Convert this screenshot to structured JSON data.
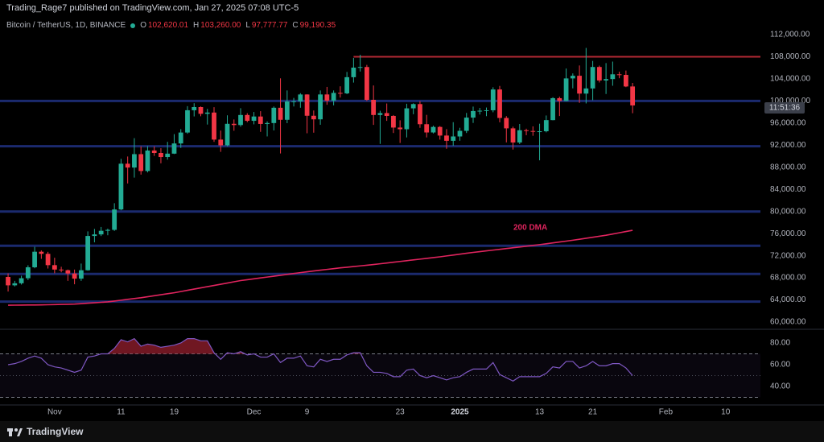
{
  "header": {
    "publisher": "Trading_Rage7 published on TradingView.com, Jan 27, 2025 07:08 UTC-5",
    "symbol": "Bitcoin / TetherUS, 1D, BINANCE",
    "ohlc_legend": [
      {
        "key": "O",
        "value": "102,620.01"
      },
      {
        "key": "H",
        "value": "103,260.00"
      },
      {
        "key": "L",
        "value": "97,777.77"
      },
      {
        "key": "C",
        "value": "99,190.35"
      }
    ]
  },
  "footer": {
    "brand": "TradingView"
  },
  "chart_data": [
    {
      "type": "candlestick",
      "up_color": "#22ab94",
      "down_color": "#f23645",
      "open": [
        68161,
        66642,
        67014,
        67929,
        69907,
        72720,
        72340,
        70292,
        69496,
        69374,
        68775,
        67850,
        69372,
        75571,
        75857,
        76509,
        76677,
        80370,
        88647,
        87952,
        90375,
        87325,
        91032,
        90587,
        89855,
        90465,
        92310,
        94287,
        98318,
        98892,
        97673,
        97900,
        93010,
        91965,
        95863,
        95643,
        97461,
        96407,
        97185,
        95840,
        96002,
        98768,
        96593,
        99920,
        99923,
        101170,
        97323,
        96675,
        101174,
        100043,
        101459,
        101372,
        104298,
        106030,
        106140,
        100200,
        97461,
        97805,
        97292,
        95187,
        94881,
        98663,
        99430,
        95792,
        94300,
        95300,
        93740,
        92792,
        93576,
        94591,
        96985,
        98174,
        98236,
        98314,
        102078,
        96923,
        95044,
        92484,
        94701,
        94566,
        94488,
        94516,
        96534,
        100504,
        99988,
        104077,
        104557,
        101330,
        102260,
        106143,
        103706,
        103960,
        104820,
        104714,
        102620.01
      ],
      "high": [
        68800,
        67450,
        68380,
        70270,
        73620,
        72960,
        72700,
        71632,
        70000,
        69500,
        69490,
        70580,
        76400,
        76850,
        77200,
        76900,
        81500,
        89530,
        89950,
        93265,
        91790,
        91850,
        91780,
        91450,
        92600,
        94000,
        94900,
        99060,
        99590,
        99000,
        98565,
        98870,
        94640,
        97400,
        96650,
        98690,
        97780,
        98000,
        98150,
        96300,
        99000,
        104090,
        101900,
        100550,
        101400,
        101200,
        98270,
        101900,
        102540,
        101900,
        102650,
        105250,
        107780,
        108350,
        106520,
        102800,
        98230,
        99540,
        97450,
        96500,
        99490,
        99570,
        99960,
        97480,
        95530,
        95450,
        94900,
        96160,
        95150,
        97830,
        98980,
        98740,
        98810,
        102480,
        102720,
        97260,
        95350,
        95830,
        94980,
        95400,
        95880,
        97370,
        100680,
        100780,
        105865,
        104980,
        106420,
        109590,
        107240,
        106390,
        106850,
        107120,
        105290,
        105500,
        103260
      ],
      "low": [
        65520,
        66440,
        66780,
        67600,
        69730,
        71430,
        69680,
        68820,
        69000,
        67450,
        66835,
        67450,
        69300,
        74420,
        75560,
        75700,
        76490,
        80220,
        85070,
        86130,
        86670,
        87070,
        90060,
        88720,
        89380,
        90400,
        91500,
        94070,
        97200,
        97230,
        95730,
        92600,
        90790,
        91810,
        94610,
        95340,
        96160,
        95770,
        94410,
        93580,
        94660,
        90500,
        95980,
        99000,
        98770,
        94150,
        94260,
        95690,
        99310,
        99200,
        100610,
        101230,
        103320,
        105320,
        100000,
        95670,
        92230,
        96400,
        94200,
        92400,
        93400,
        97600,
        95140,
        93400,
        94120,
        93000,
        91350,
        91900,
        92800,
        94200,
        96020,
        97540,
        97250,
        97950,
        96130,
        92500,
        91200,
        92200,
        93800,
        93700,
        89260,
        94320,
        96500,
        97270,
        99950,
        102280,
        99650,
        99550,
        100120,
        103340,
        101260,
        102750,
        104110,
        102500,
        97777.77
      ],
      "close": [
        66642,
        67014,
        67929,
        69907,
        72720,
        72340,
        70292,
        69496,
        69374,
        68775,
        67850,
        69372,
        75571,
        75857,
        76509,
        76677,
        80370,
        88647,
        87952,
        90375,
        87325,
        91032,
        90587,
        89855,
        90465,
        92310,
        94287,
        98318,
        98892,
        97673,
        97900,
        93010,
        91965,
        95863,
        95643,
        97461,
        96407,
        97185,
        95840,
        96002,
        98768,
        96593,
        99920,
        99923,
        101170,
        97323,
        96675,
        101174,
        100043,
        101459,
        101372,
        104298,
        106030,
        106140,
        100200,
        97461,
        97805,
        97292,
        95187,
        94881,
        98663,
        99430,
        95792,
        94300,
        95300,
        93740,
        92792,
        93576,
        94591,
        96985,
        98174,
        98236,
        98314,
        102078,
        96923,
        95044,
        92484,
        94701,
        94566,
        94488,
        94516,
        96534,
        100504,
        99988,
        104077,
        104557,
        101330,
        102260,
        106143,
        103706,
        103960,
        104820,
        104714,
        102620.01,
        99190.35
      ],
      "series": [
        {
          "name": "200 DMA",
          "color": "#e0245e",
          "values": [
            63050,
            63060,
            63070,
            63080,
            63090,
            63100,
            63130,
            63160,
            63190,
            63220,
            63250,
            63330,
            63410,
            63490,
            63570,
            63650,
            63800,
            63950,
            64100,
            64250,
            64400,
            64580,
            64760,
            64940,
            65120,
            65300,
            65520,
            65740,
            65960,
            66180,
            66400,
            66620,
            66840,
            67060,
            67280,
            67500,
            67660,
            67820,
            67980,
            68140,
            68300,
            68460,
            68620,
            68780,
            68940,
            69100,
            69240,
            69380,
            69520,
            69660,
            69800,
            69920,
            70040,
            70160,
            70280,
            70400,
            70540,
            70680,
            70820,
            70960,
            71100,
            71240,
            71380,
            71520,
            71660,
            71800,
            71960,
            72120,
            72280,
            72440,
            72600,
            72740,
            72880,
            73020,
            73160,
            73300,
            73440,
            73580,
            73720,
            73860,
            74000,
            74160,
            74320,
            74480,
            74640,
            74800,
            74980,
            75160,
            75340,
            75520,
            75700,
            75925,
            76150,
            76375,
            76600
          ]
        }
      ],
      "horizontal_lines": {
        "color": "#1b2a6e",
        "values": [
          100000,
          91800,
          80000,
          73800,
          68700,
          63700
        ]
      },
      "resistance_line": {
        "value": 108000,
        "from": 52,
        "color": "#b22833"
      },
      "countdown": "11:51:36",
      "ylim": [
        60000,
        112000
      ],
      "yticks": [
        {
          "value": 60000,
          "label": "60,000.00"
        },
        {
          "value": 64000,
          "label": "64,000.00"
        },
        {
          "value": 68000,
          "label": "68,000.00"
        },
        {
          "value": 72000,
          "label": "72,000.00"
        },
        {
          "value": 76000,
          "label": "76,000.00"
        },
        {
          "value": 80000,
          "label": "80,000.00"
        },
        {
          "value": 84000,
          "label": "84,000.00"
        },
        {
          "value": 88000,
          "label": "88,000.00"
        },
        {
          "value": 92000,
          "label": "92,000.00"
        },
        {
          "value": 96000,
          "label": "96,000.00"
        },
        {
          "value": 100000,
          "label": "100,000.00"
        },
        {
          "value": 104000,
          "label": "104,000.00"
        },
        {
          "value": 108000,
          "label": "108,000.00"
        },
        {
          "value": 112000,
          "label": "112,000.00"
        }
      ],
      "xlim": [
        -0.25,
        113
      ],
      "xticks": [
        {
          "value": 7,
          "label": "Nov"
        },
        {
          "value": 17,
          "label": "11"
        },
        {
          "value": 25,
          "label": "19"
        },
        {
          "value": 37,
          "label": "Dec"
        },
        {
          "value": 45,
          "label": "9"
        },
        {
          "value": 59,
          "label": "23"
        },
        {
          "value": 68,
          "label": "2025",
          "bold": true
        },
        {
          "value": 80,
          "label": "13"
        },
        {
          "value": 88,
          "label": "21"
        },
        {
          "value": 99,
          "label": "Feb"
        },
        {
          "value": 108,
          "label": "10"
        }
      ]
    },
    {
      "type": "line",
      "color": "#7e57c2",
      "values": [
        60,
        61,
        63,
        66,
        68,
        66,
        60,
        58,
        57,
        55,
        53,
        55,
        67,
        68,
        70,
        70,
        75,
        83,
        81,
        84,
        77,
        79,
        78,
        76,
        77,
        78,
        80,
        84,
        84,
        82,
        82,
        71,
        65,
        71,
        70,
        72,
        69,
        70,
        67,
        67,
        70,
        62,
        66,
        66,
        68,
        59,
        58,
        65,
        63,
        65,
        65,
        69,
        71,
        71,
        59,
        53,
        53,
        52,
        49,
        49,
        55,
        56,
        50,
        48,
        50,
        48,
        46,
        48,
        49,
        53,
        56,
        56,
        56,
        62,
        51,
        48,
        45,
        49,
        49,
        49,
        49,
        52,
        58,
        57,
        63,
        63,
        57,
        59,
        63,
        59,
        59,
        61,
        61,
        57,
        50
      ],
      "ylim": [
        40,
        80
      ],
      "yticks": [
        {
          "value": 40,
          "label": "40.00"
        },
        {
          "value": 60,
          "label": "60.00"
        },
        {
          "value": 80,
          "label": "80.00"
        }
      ],
      "bands": [
        30,
        70
      ],
      "midline": 50,
      "overbought_color": "#8c1d2a"
    }
  ]
}
